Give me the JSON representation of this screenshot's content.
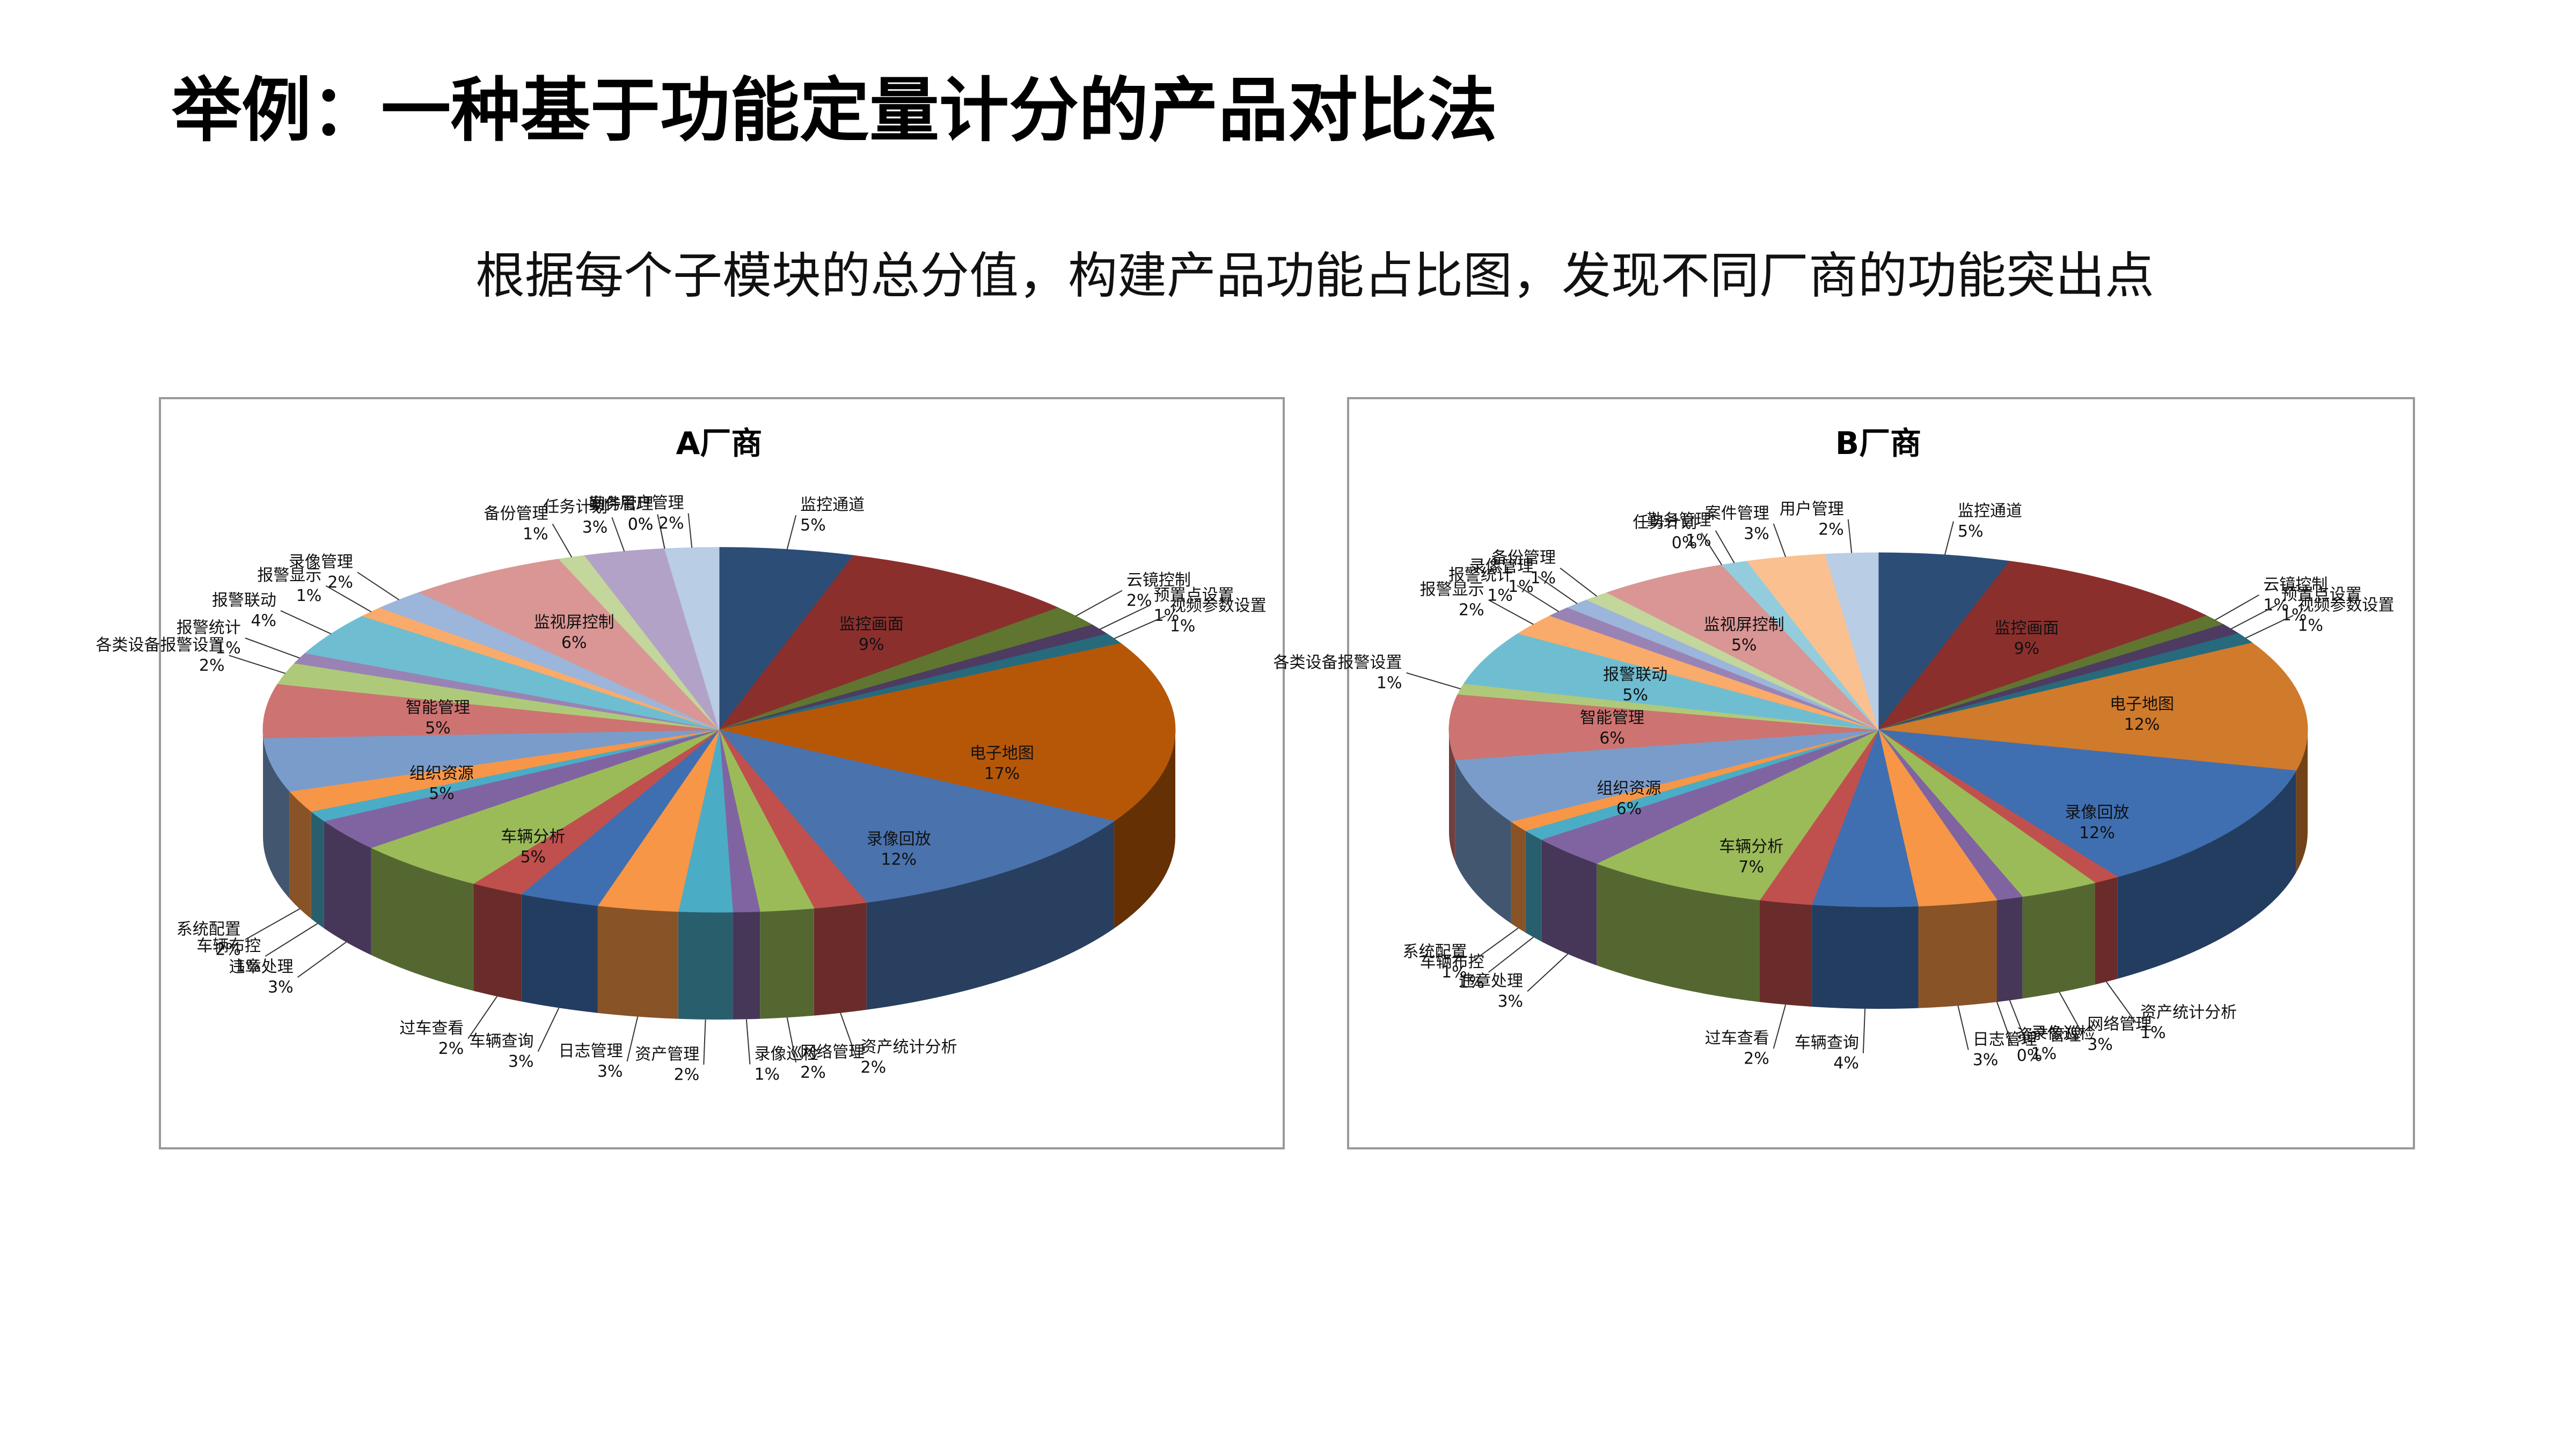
{
  "header": {
    "title": "举例：一种基于功能定量计分的产品对比法",
    "subtitle": "根据每个子模块的总分值，构建产品功能占比图，发现不同厂商的功能突出点"
  },
  "chart_data": [
    {
      "type": "pie",
      "title": "A厂商",
      "categories": [
        "监控通道",
        "监控画面",
        "云镜控制",
        "预置点设置",
        "视频参数设置",
        "电子地图",
        "录像回放",
        "资产统计分析",
        "网络管理",
        "录像巡检",
        "资产管理",
        "日志管理",
        "车辆查询",
        "过车查看",
        "车辆分析",
        "违章处理",
        "车辆布控",
        "系统配置",
        "组织资源",
        "智能管理",
        "各类设备报警设置",
        "报警统计",
        "报警联动",
        "报警显示",
        "录像管理",
        "监视屏控制",
        "备份管理",
        "任务计划",
        "勤务管理",
        "案件管理",
        "用户管理"
      ],
      "values": [
        5,
        9,
        2,
        1,
        1,
        17,
        12,
        2,
        2,
        1,
        2,
        3,
        3,
        2,
        5,
        3,
        1,
        2,
        5,
        5,
        2,
        1,
        4,
        1,
        2,
        6,
        1,
        3,
        0,
        0,
        2
      ],
      "value_labels": [
        "5%",
        "9%",
        "2%",
        "1%",
        "1%",
        "17%",
        "12%",
        "2%",
        "2%",
        "1%",
        "2%",
        "3%",
        "3%",
        "2%",
        "5%",
        "3%",
        "1%",
        "2%",
        "5%",
        "5%",
        "2%",
        "1%",
        "4%",
        "1%",
        "2%",
        "6%",
        "1%",
        "3%",
        "0%",
        "0%",
        "2%"
      ],
      "colors": [
        "#2C4D75",
        "#8B2F2D",
        "#5F7530",
        "#4D3B62",
        "#276A7C",
        "#B65708",
        "#4A72AD",
        "#C0504D",
        "#9BBB59",
        "#8064A2",
        "#4BACC6",
        "#F79646",
        "#3F6FB0",
        "#C0504D",
        "#9BBB59",
        "#8064A2",
        "#4BACC6",
        "#F79646",
        "#7A9CCB",
        "#CD7371",
        "#AFC97A",
        "#9983B5",
        "#6FBDD1",
        "#F9AB6B",
        "#9CB5DA",
        "#D99694",
        "#C3D69B",
        "#B3A2C7",
        "#93CDDD",
        "#FAC090",
        "#B9CDE5"
      ]
    },
    {
      "type": "pie",
      "title": "B厂商",
      "categories": [
        "监控通道",
        "监控画面",
        "云镜控制",
        "预置点设置",
        "视频参数设置",
        "电子地图",
        "录像回放",
        "资产统计分析",
        "网络管理",
        "录像巡检",
        "资产管理",
        "日志管理",
        "车辆查询",
        "过车查看",
        "车辆分析",
        "违章处理",
        "车辆布控",
        "系统配置",
        "组织资源",
        "智能管理",
        "各类设备报警设置",
        "报警联动",
        "报警显示",
        "报警统计",
        "录像管理",
        "备份管理",
        "监视屏控制",
        "任务计划",
        "勤务管理",
        "案件管理",
        "用户管理"
      ],
      "values": [
        5,
        9,
        1,
        1,
        1,
        12,
        12,
        1,
        3,
        1,
        0,
        3,
        4,
        2,
        7,
        3,
        1,
        1,
        6,
        6,
        1,
        5,
        2,
        1,
        1,
        1,
        5,
        0,
        1,
        3,
        2
      ],
      "value_labels": [
        "5%",
        "9%",
        "1%",
        "1%",
        "1%",
        "12%",
        "12%",
        "1%",
        "3%",
        "1%",
        "0%",
        "3%",
        "4%",
        "2%",
        "7%",
        "3%",
        "1%",
        "1%",
        "6%",
        "6%",
        "1%",
        "5%",
        "2%",
        "1%",
        "1%",
        "1%",
        "5%",
        "0%",
        "1%",
        "3%",
        "2%"
      ],
      "colors": [
        "#2C4D75",
        "#8B2F2D",
        "#5F7530",
        "#4D3B62",
        "#276A7C",
        "#D07A2C",
        "#3F6FB0",
        "#C0504D",
        "#9BBB59",
        "#8064A2",
        "#4BACC6",
        "#F79646",
        "#3F6FB0",
        "#C0504D",
        "#9BBB59",
        "#8064A2",
        "#4BACC6",
        "#F79646",
        "#7A9CCB",
        "#CD7371",
        "#AFC97A",
        "#6FBDD1",
        "#F9AB6B",
        "#9983B5",
        "#9CB5DA",
        "#C3D69B",
        "#D99694",
        "#B3A2C7",
        "#93CDDD",
        "#FAC090",
        "#B9CDE5"
      ]
    }
  ]
}
